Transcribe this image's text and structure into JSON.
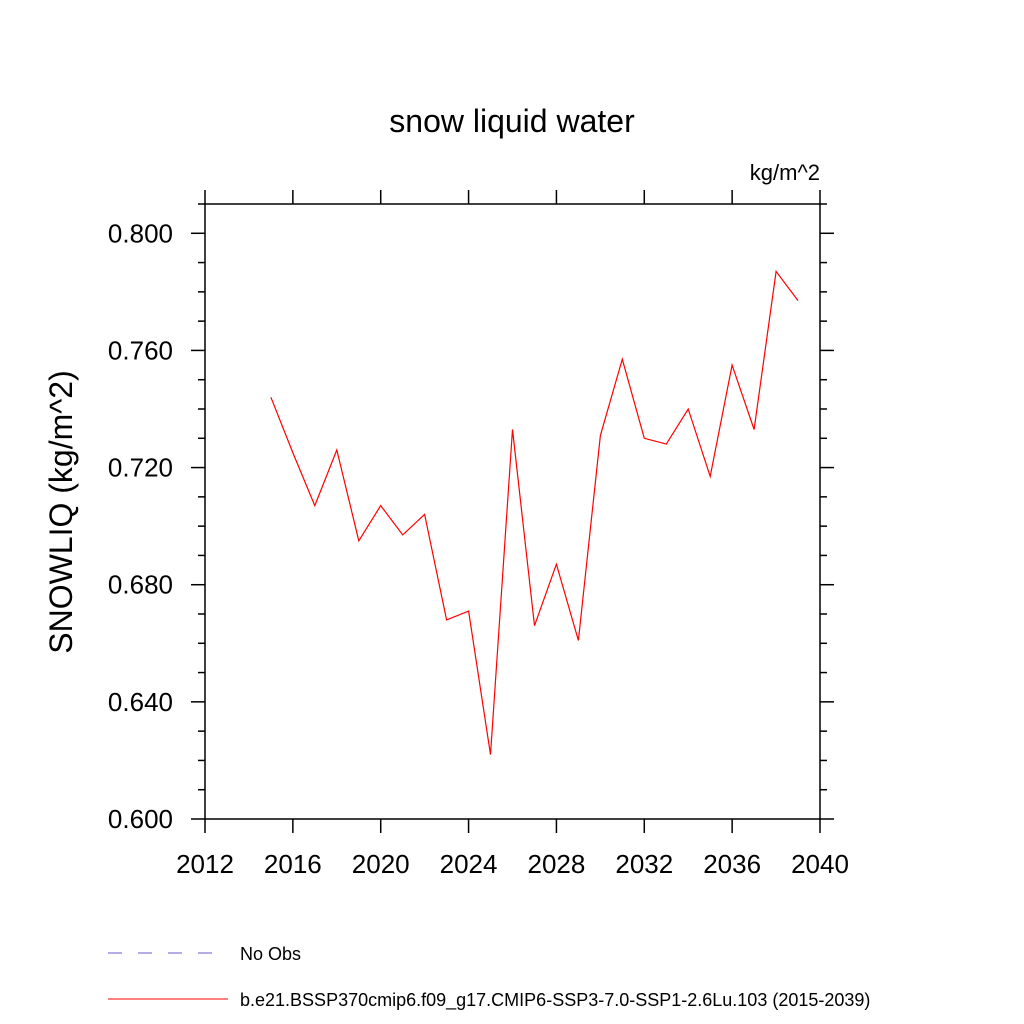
{
  "chart_data": {
    "type": "line",
    "title": "snow liquid water",
    "units_label": "kg/m^2",
    "xlabel": "",
    "ylabel": "SNOWLIQ  (kg/m^2)",
    "xlim": [
      2012,
      2040
    ],
    "ylim": [
      0.6,
      0.81
    ],
    "x_ticks": [
      2012,
      2016,
      2020,
      2024,
      2028,
      2032,
      2036,
      2040
    ],
    "x_tick_labels": [
      "2012",
      "2016",
      "2020",
      "2024",
      "2028",
      "2032",
      "2036",
      "2040"
    ],
    "y_ticks": [
      0.6,
      0.64,
      0.68,
      0.72,
      0.76,
      0.8
    ],
    "y_tick_labels": [
      "0.600",
      "0.640",
      "0.680",
      "0.720",
      "0.760",
      "0.800"
    ],
    "grid": false,
    "legend_position": "bottom-left",
    "series": [
      {
        "name": "b.e21.BSSP370cmip6.f09_g17.CMIP6-SSP3-7.0-SSP1-2.6Lu.103 (2015-2039)",
        "color": "#ff0000",
        "style": "solid",
        "x": [
          2015,
          2016,
          2017,
          2018,
          2019,
          2020,
          2021,
          2022,
          2023,
          2024,
          2025,
          2026,
          2027,
          2028,
          2029,
          2030,
          2031,
          2032,
          2033,
          2034,
          2035,
          2036,
          2037,
          2038,
          2039
        ],
        "y": [
          0.744,
          0.725,
          0.707,
          0.726,
          0.695,
          0.707,
          0.697,
          0.704,
          0.668,
          0.671,
          0.622,
          0.733,
          0.666,
          0.687,
          0.661,
          0.731,
          0.757,
          0.73,
          0.728,
          0.74,
          0.717,
          0.755,
          0.733,
          0.787,
          0.777
        ]
      }
    ],
    "legend": [
      {
        "label": "No Obs",
        "color": "#6a5acd",
        "style": "dashed"
      },
      {
        "label": "b.e21.BSSP370cmip6.f09_g17.CMIP6-SSP3-7.0-SSP1-2.6Lu.103 (2015-2039)",
        "color": "#ff0000",
        "style": "solid"
      }
    ]
  }
}
